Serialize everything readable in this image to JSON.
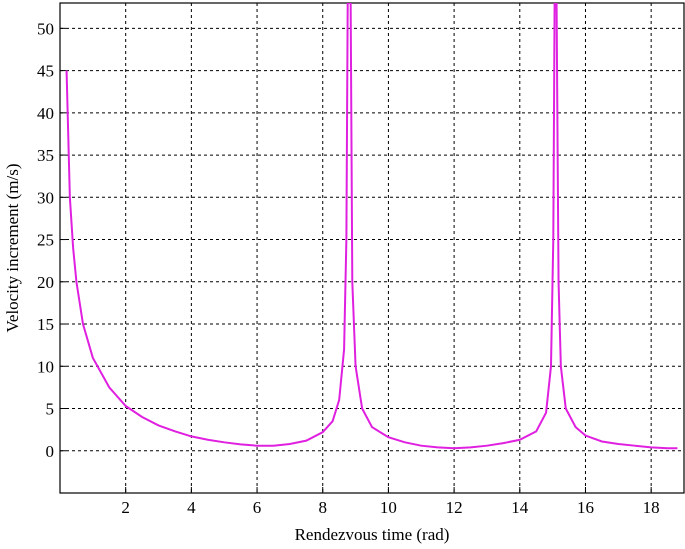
{
  "chart_data": {
    "type": "line",
    "xlabel": "Rendezvous time (rad)",
    "ylabel": "Velocity increment (m/s)",
    "xlim": [
      0,
      19
    ],
    "ylim": [
      -5,
      53
    ],
    "xticks": [
      2,
      4,
      6,
      8,
      10,
      12,
      14,
      16,
      18
    ],
    "yticks": [
      0,
      5,
      10,
      15,
      20,
      25,
      30,
      35,
      40,
      45,
      50
    ],
    "grid": true,
    "series": [
      {
        "color": "#e020e0",
        "x": [
          0.2,
          0.3,
          0.4,
          0.5,
          0.7,
          1.0,
          1.5,
          2,
          2.5,
          3,
          3.5,
          4,
          4.5,
          5,
          5.5,
          6,
          6.5,
          7,
          7.5,
          8,
          8.3,
          8.5,
          8.65,
          8.72,
          8.76,
          8.85,
          8.9,
          9.0,
          9.2,
          9.5,
          10,
          10.5,
          11,
          11.5,
          12,
          12.5,
          13,
          13.5,
          14,
          14.5,
          14.8,
          14.95,
          15.02,
          15.06,
          15.12,
          15.18,
          15.25,
          15.4,
          15.7,
          16,
          16.5,
          17,
          17.5,
          18,
          18.5,
          18.8
        ],
        "values": [
          45,
          30,
          24,
          20,
          15,
          11,
          7.5,
          5.3,
          4,
          3,
          2.3,
          1.7,
          1.3,
          1,
          0.75,
          0.6,
          0.6,
          0.8,
          1.2,
          2.2,
          3.5,
          6,
          12,
          25,
          53,
          53,
          20,
          10,
          5,
          2.8,
          1.6,
          1,
          0.6,
          0.4,
          0.3,
          0.4,
          0.6,
          0.9,
          1.3,
          2.3,
          4.5,
          10,
          25,
          53,
          53,
          20,
          10,
          5,
          2.8,
          1.8,
          1.1,
          0.8,
          0.6,
          0.4,
          0.3,
          0.3
        ]
      }
    ]
  }
}
